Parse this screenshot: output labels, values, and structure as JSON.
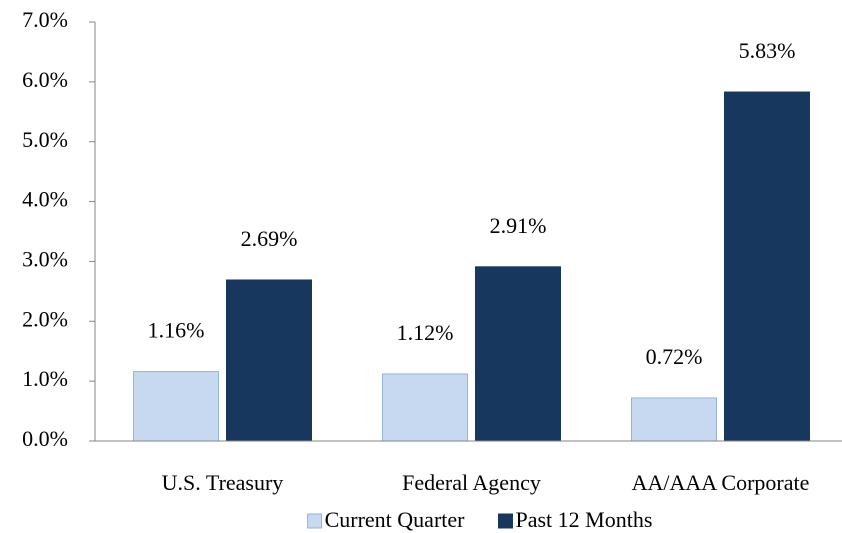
{
  "chart_data": {
    "type": "bar",
    "categories": [
      "U.S. Treasury",
      "Federal Agency",
      "AA/AAA Corporate"
    ],
    "series": [
      {
        "name": "Current Quarter",
        "color": "#c6d9f1",
        "values": [
          1.16,
          1.12,
          0.72
        ],
        "value_labels": [
          "1.16%",
          "1.12%",
          "0.72%"
        ]
      },
      {
        "name": "Past 12 Months",
        "color": "#17375e",
        "values": [
          2.69,
          2.91,
          5.83
        ],
        "value_labels": [
          "2.69%",
          "2.91%",
          "5.83%"
        ]
      }
    ],
    "ylim": [
      0,
      7
    ],
    "yticks": [
      {
        "value": 0,
        "label": "0.0%"
      },
      {
        "value": 1,
        "label": "1.0%"
      },
      {
        "value": 2,
        "label": "2.0%"
      },
      {
        "value": 3,
        "label": "3.0%"
      },
      {
        "value": 4,
        "label": "4.0%"
      },
      {
        "value": 5,
        "label": "5.0%"
      },
      {
        "value": 6,
        "label": "6.0%"
      },
      {
        "value": 7,
        "label": "7.0%"
      }
    ],
    "grid": false,
    "legend": "bottom"
  }
}
